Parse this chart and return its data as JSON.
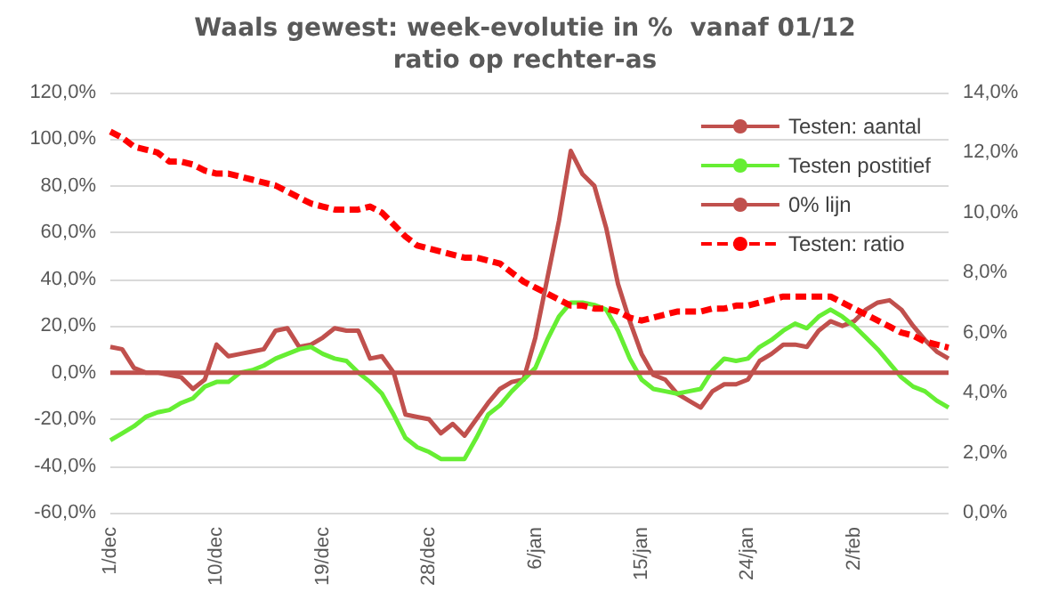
{
  "chart_data": {
    "type": "line",
    "title": "Waals gewest: week-evolutie in %  vanaf 01/12",
    "subtitle": "ratio op rechter-as",
    "categories": [
      "1/dec",
      null,
      null,
      null,
      null,
      null,
      null,
      null,
      null,
      "10/dec",
      null,
      null,
      null,
      null,
      null,
      null,
      null,
      null,
      "19/dec",
      null,
      null,
      null,
      null,
      null,
      null,
      null,
      null,
      "28/dec",
      null,
      null,
      null,
      null,
      null,
      null,
      null,
      null,
      "6/jan",
      null,
      null,
      null,
      null,
      null,
      null,
      null,
      null,
      "15/jan",
      null,
      null,
      null,
      null,
      null,
      null,
      null,
      null,
      "24/jan",
      null,
      null,
      null,
      null,
      null,
      null,
      null,
      null,
      "2/feb",
      null,
      null,
      null,
      null,
      null,
      null,
      null,
      null
    ],
    "series": [
      {
        "name": "Testen: aantal",
        "color": "#c0504d",
        "line_style": "solid",
        "values": [
          11,
          10,
          2,
          0,
          0,
          -1,
          -2,
          -7,
          -3,
          12,
          7,
          8,
          9,
          10,
          18,
          19,
          11,
          12,
          15,
          19,
          18,
          18,
          6,
          7,
          0,
          -18,
          -19,
          -20,
          -26,
          -22,
          -27,
          -20,
          -13,
          -7,
          -4,
          -3,
          15,
          40,
          65,
          95,
          85,
          80,
          62,
          38,
          22,
          8,
          -1,
          -3,
          -9,
          -12,
          -15,
          -8,
          -5,
          -5,
          -3,
          5,
          8,
          12,
          12,
          11,
          18,
          22,
          20,
          22,
          27,
          30,
          31,
          27,
          20,
          14,
          9,
          6
        ]
      },
      {
        "name": "Testen postitief",
        "color": "#66ee33",
        "line_style": "solid",
        "values": [
          -29,
          -26,
          -23,
          -19,
          -17,
          -16,
          -13,
          -11,
          -6,
          -4,
          -4,
          0,
          1,
          3,
          6,
          8,
          10,
          11,
          8,
          6,
          5,
          0,
          -4,
          -9,
          -18,
          -28,
          -32,
          -34,
          -37,
          -37,
          -37,
          -28,
          -18,
          -14,
          -8,
          -3,
          2,
          14,
          24,
          30,
          30,
          29,
          27,
          18,
          6,
          -3,
          -7,
          -8,
          -9,
          -8,
          -7,
          1,
          6,
          5,
          6,
          11,
          14,
          18,
          21,
          19,
          24,
          27,
          24,
          20,
          15,
          10,
          4,
          -2,
          -6,
          -8,
          -12,
          -15
        ]
      },
      {
        "name": "0% lijn",
        "color": "#c0504d",
        "line_style": "solid",
        "values": [
          0,
          0,
          0,
          0,
          0,
          0,
          0,
          0,
          0,
          0,
          0,
          0,
          0,
          0,
          0,
          0,
          0,
          0,
          0,
          0,
          0,
          0,
          0,
          0,
          0,
          0,
          0,
          0,
          0,
          0,
          0,
          0,
          0,
          0,
          0,
          0,
          0,
          0,
          0,
          0,
          0,
          0,
          0,
          0,
          0,
          0,
          0,
          0,
          0,
          0,
          0,
          0,
          0,
          0,
          0,
          0,
          0,
          0,
          0,
          0,
          0,
          0,
          0,
          0,
          0,
          0,
          0,
          0,
          0,
          0,
          0,
          0
        ]
      },
      {
        "name": "Testen: ratio",
        "color": "#ff0000",
        "line_style": "dashed",
        "axis": "y2",
        "values": [
          12.7,
          12.5,
          12.2,
          12.1,
          12.0,
          11.7,
          11.7,
          11.6,
          11.4,
          11.3,
          11.3,
          11.2,
          11.1,
          11.0,
          10.9,
          10.7,
          10.5,
          10.3,
          10.2,
          10.1,
          10.1,
          10.1,
          10.2,
          10.0,
          9.6,
          9.2,
          8.9,
          8.8,
          8.7,
          8.6,
          8.5,
          8.5,
          8.4,
          8.3,
          8.0,
          7.7,
          7.5,
          7.3,
          7.1,
          6.9,
          6.9,
          6.8,
          6.8,
          6.7,
          6.5,
          6.4,
          6.5,
          6.6,
          6.7,
          6.7,
          6.7,
          6.8,
          6.8,
          6.9,
          6.9,
          7.0,
          7.1,
          7.2,
          7.2,
          7.2,
          7.2,
          7.2,
          7.0,
          6.8,
          6.6,
          6.4,
          6.2,
          6.0,
          5.9,
          5.7,
          5.6,
          5.5
        ]
      }
    ],
    "ylim": [
      -60,
      120
    ],
    "yticks": [
      {
        "value": -60,
        "label": "-60,0%"
      },
      {
        "value": -40,
        "label": "-40,0%"
      },
      {
        "value": -20,
        "label": "-20,0%"
      },
      {
        "value": 0,
        "label": "0,0%"
      },
      {
        "value": 20,
        "label": "20,0%"
      },
      {
        "value": 40,
        "label": "40,0%"
      },
      {
        "value": 60,
        "label": "60,0%"
      },
      {
        "value": 80,
        "label": "80,0%"
      },
      {
        "value": 100,
        "label": "100,0%"
      },
      {
        "value": 120,
        "label": "120,0%"
      }
    ],
    "y2lim": [
      0,
      14
    ],
    "y2ticks": [
      {
        "value": 0,
        "label": "0,0%"
      },
      {
        "value": 2,
        "label": "2,0%"
      },
      {
        "value": 4,
        "label": "4,0%"
      },
      {
        "value": 6,
        "label": "6,0%"
      },
      {
        "value": 8,
        "label": "8,0%"
      },
      {
        "value": 10,
        "label": "10,0%"
      },
      {
        "value": 12,
        "label": "12,0%"
      },
      {
        "value": 14,
        "label": "14,0%"
      }
    ],
    "grid": "y",
    "legend": "top right",
    "marker": "none"
  }
}
